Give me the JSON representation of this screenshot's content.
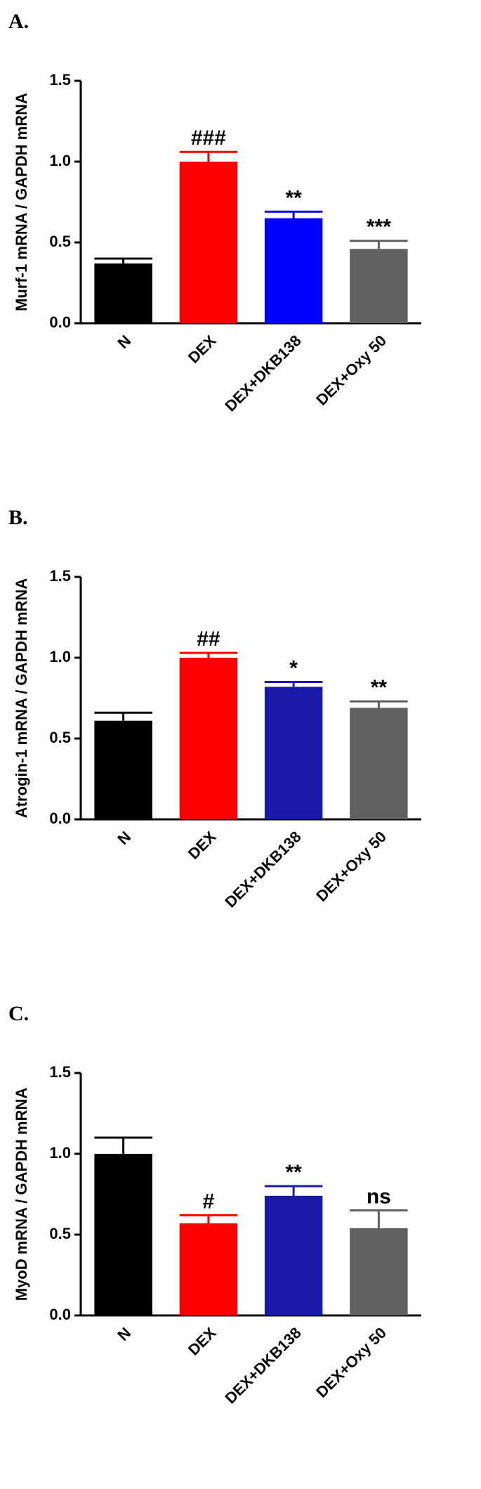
{
  "chart_data": [
    {
      "type": "bar",
      "panel": "A.",
      "ylabel": "Murf-1 mRNA / GAPDH mRNA",
      "categories": [
        "N",
        "DEX",
        "DEX+DKB138",
        "DEX+Oxy 50"
      ],
      "values": [
        0.37,
        1.0,
        0.65,
        0.46
      ],
      "errors": [
        0.03,
        0.06,
        0.04,
        0.05
      ],
      "colors": [
        "#000000",
        "#ff0000",
        "#0000ff",
        "#606060"
      ],
      "annotations": [
        null,
        "###",
        "**",
        "***"
      ],
      "ylim": [
        0,
        1.5
      ],
      "yticks": [
        {
          "value": 0,
          "label": "0.0"
        },
        {
          "value": 0.5,
          "label": "0.5"
        },
        {
          "value": 1,
          "label": "1.0"
        },
        1.5
      ]
    },
    {
      "type": "bar",
      "panel": "B.",
      "ylabel": "Atrogin-1 mRNA / GAPDH mRNA",
      "categories": [
        "N",
        "DEX",
        "DEX+DKB138",
        "DEX+Oxy 50"
      ],
      "values": [
        0.61,
        1.0,
        0.82,
        0.69
      ],
      "errors": [
        0.05,
        0.03,
        0.03,
        0.04
      ],
      "colors": [
        "#000000",
        "#ff0000",
        "#1a1aaa",
        "#606060"
      ],
      "annotations": [
        null,
        "##",
        "*",
        "**"
      ],
      "ylim": [
        0,
        1.5
      ],
      "yticks": [
        {
          "value": 0,
          "label": "0.0"
        },
        {
          "value": 0.5,
          "label": "0.5"
        },
        {
          "value": 1,
          "label": "1.0"
        },
        1.5
      ]
    },
    {
      "type": "bar",
      "panel": "C.",
      "ylabel": "MyoD mRNA / GAPDH mRNA",
      "categories": [
        "N",
        "DEX",
        "DEX+DKB138",
        "DEX+Oxy 50"
      ],
      "values": [
        1.0,
        0.57,
        0.74,
        0.54
      ],
      "errors": [
        0.1,
        0.05,
        0.06,
        0.11
      ],
      "colors": [
        "#000000",
        "#ff0000",
        "#1a1aaa",
        "#606060"
      ],
      "annotations": [
        null,
        "#",
        "**",
        "ns"
      ],
      "ylim": [
        0,
        1.5
      ],
      "yticks": [
        {
          "value": 0,
          "label": "0.0"
        },
        {
          "value": 0.5,
          "label": "0.5"
        },
        {
          "value": 1,
          "label": "1.0"
        },
        1.5
      ]
    }
  ]
}
